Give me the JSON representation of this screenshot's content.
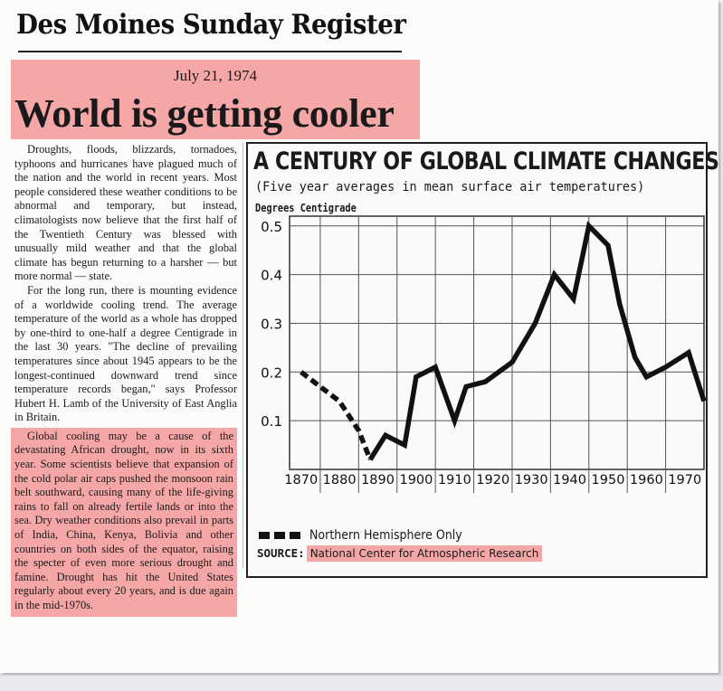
{
  "masthead": "Des Moines Sunday Register",
  "date": "July 21, 1974",
  "headline": "World is getting cooler",
  "article": {
    "paragraphs": [
      "Droughts, floods, blizzards, tornadoes, typhoons and hurricanes have plagued much of the nation and the world in recent years. Most people considered these weather conditions to be abnormal and temporary, but instead, climatologists now believe that the first half of the Twentieth Century was blessed with unusually mild weather and that the global climate has begun returning to a harsher — but more normal — state.",
      "For the long run, there is mounting evidence of a worldwide cooling trend. The average temperature of the world as a whole has dropped by one-third to one-half a degree Centigrade in the last 30 years. \"The decline of prevailing temperatures since about 1945 appears to be the longest-continued downward trend since temperature records began,\" says Professor Hubert H. Lamb of the University of East Anglia in Britain."
    ],
    "highlighted_paragraph": "Global cooling may be a cause of the devastating African drought, now in its sixth year. Some scientists believe that expansion of the cold polar air caps pushed the monsoon rain belt southward, causing many of the life-giving rains to fall on already fertile lands or into the sea. Dry weather conditions also prevail in parts of India, China, Kenya, Bolivia and other countries on both sides of the equator, raising the specter of even more serious drought and famine. Drought has hit the United States regularly about every 20 years, and is due again in the mid-1970s."
  },
  "chart": {
    "title": "A CENTURY OF GLOBAL CLIMATE CHANGES",
    "subtitle": "(Five year averages in mean surface air temperatures)",
    "ylabel": "Degrees Centigrade",
    "legend_label": "Northern Hemisphere Only",
    "source_label": "SOURCE:",
    "source_org": "National Center for Atmospheric Research"
  },
  "chart_data": {
    "type": "line",
    "title": "A CENTURY OF GLOBAL CLIMATE CHANGES",
    "subtitle": "(Five year averages in mean surface air temperatures)",
    "ylabel": "Degrees Centigrade",
    "xlabel": "",
    "x_ticks": [
      1870,
      1880,
      1890,
      1900,
      1910,
      1920,
      1930,
      1940,
      1950,
      1960,
      1970
    ],
    "y_ticks": [
      0.1,
      0.2,
      0.3,
      0.4,
      0.5
    ],
    "xlim": [
      1867,
      1975
    ],
    "ylim": [
      0.0,
      0.52
    ],
    "grid": true,
    "series": [
      {
        "name": "Northern Hemisphere Only",
        "style": "dashed",
        "x": [
          1870,
          1875,
          1880,
          1885,
          1888
        ],
        "y": [
          0.2,
          0.17,
          0.14,
          0.08,
          0.02
        ]
      },
      {
        "style": "solid",
        "x": [
          1888,
          1892,
          1897,
          1900,
          1905,
          1910,
          1913,
          1918,
          1925,
          1931,
          1936,
          1941,
          1945,
          1950,
          1953,
          1957,
          1960,
          1965,
          1971,
          1975
        ],
        "y": [
          0.02,
          0.07,
          0.05,
          0.19,
          0.21,
          0.1,
          0.17,
          0.18,
          0.22,
          0.3,
          0.4,
          0.35,
          0.5,
          0.46,
          0.34,
          0.23,
          0.19,
          0.21,
          0.24,
          0.14
        ]
      }
    ]
  }
}
